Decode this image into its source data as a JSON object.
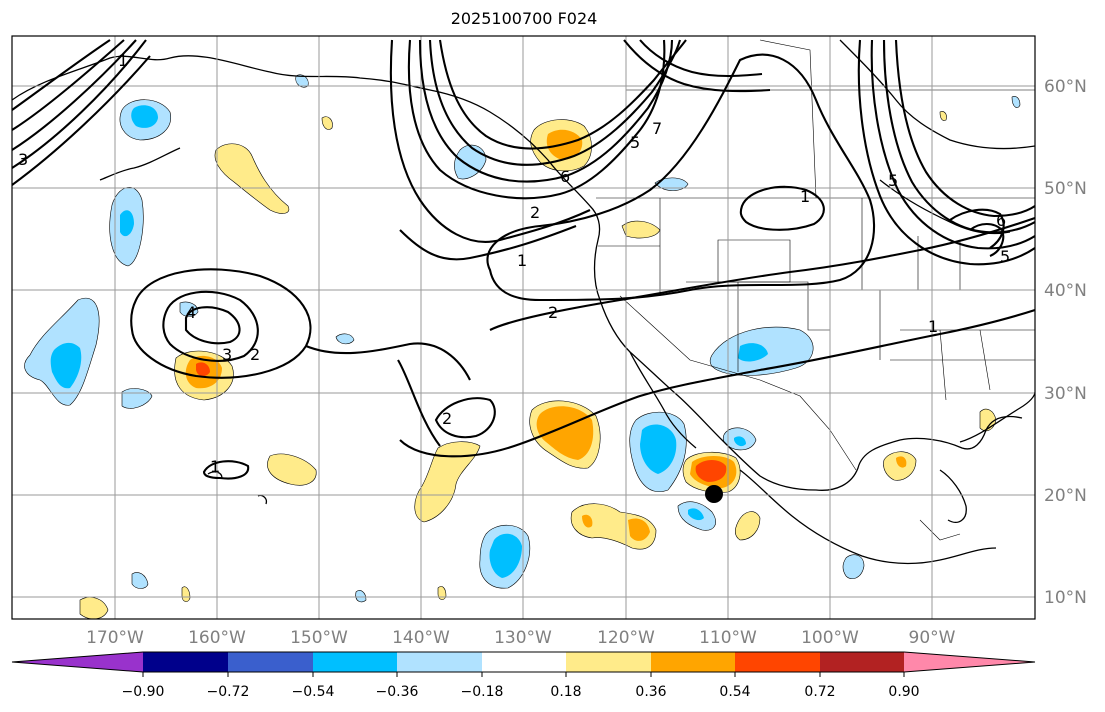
{
  "title": "2025100700 F024",
  "longitude_labels": [
    "170°W",
    "160°W",
    "150°W",
    "140°W",
    "130°W",
    "120°W",
    "110°W",
    "100°W",
    "90°W"
  ],
  "latitude_labels": [
    "60°N",
    "50°N",
    "40°N",
    "30°N",
    "20°N",
    "10°N"
  ],
  "colorbar": {
    "labels": [
      "−0.90",
      "−0.72",
      "−0.54",
      "−0.36",
      "−0.18",
      "0.18",
      "0.36",
      "0.54",
      "0.72",
      "0.90"
    ],
    "colors": [
      "#9932cc",
      "#00008b",
      "#3a5fcd",
      "#00bfff",
      "#b0e2ff",
      "#ffffff",
      "#ffeb8a",
      "#ffa500",
      "#ff4500",
      "#b22222",
      "#ff88aa"
    ]
  },
  "contour_labels": [
    "1",
    "1",
    "2",
    "2",
    "3",
    "3",
    "4",
    "2",
    "1",
    "3",
    "5",
    "7",
    "6",
    "5",
    "6",
    "5",
    "1"
  ],
  "marker": "storm-center-dot",
  "chart_data": {
    "type": "map",
    "title": "2025100700 F024",
    "projection": "plate-carree",
    "lon_range": [
      -180,
      -80
    ],
    "lat_range": [
      7,
      65
    ],
    "colorbar_levels": [
      -0.9,
      -0.72,
      -0.54,
      -0.36,
      -0.18,
      0.18,
      0.36,
      0.54,
      0.72,
      0.9
    ],
    "contour_levels_labeled": [
      1,
      2,
      3,
      4,
      5,
      6,
      7
    ],
    "marker_position": {
      "lon": -111,
      "lat": 20
    }
  }
}
